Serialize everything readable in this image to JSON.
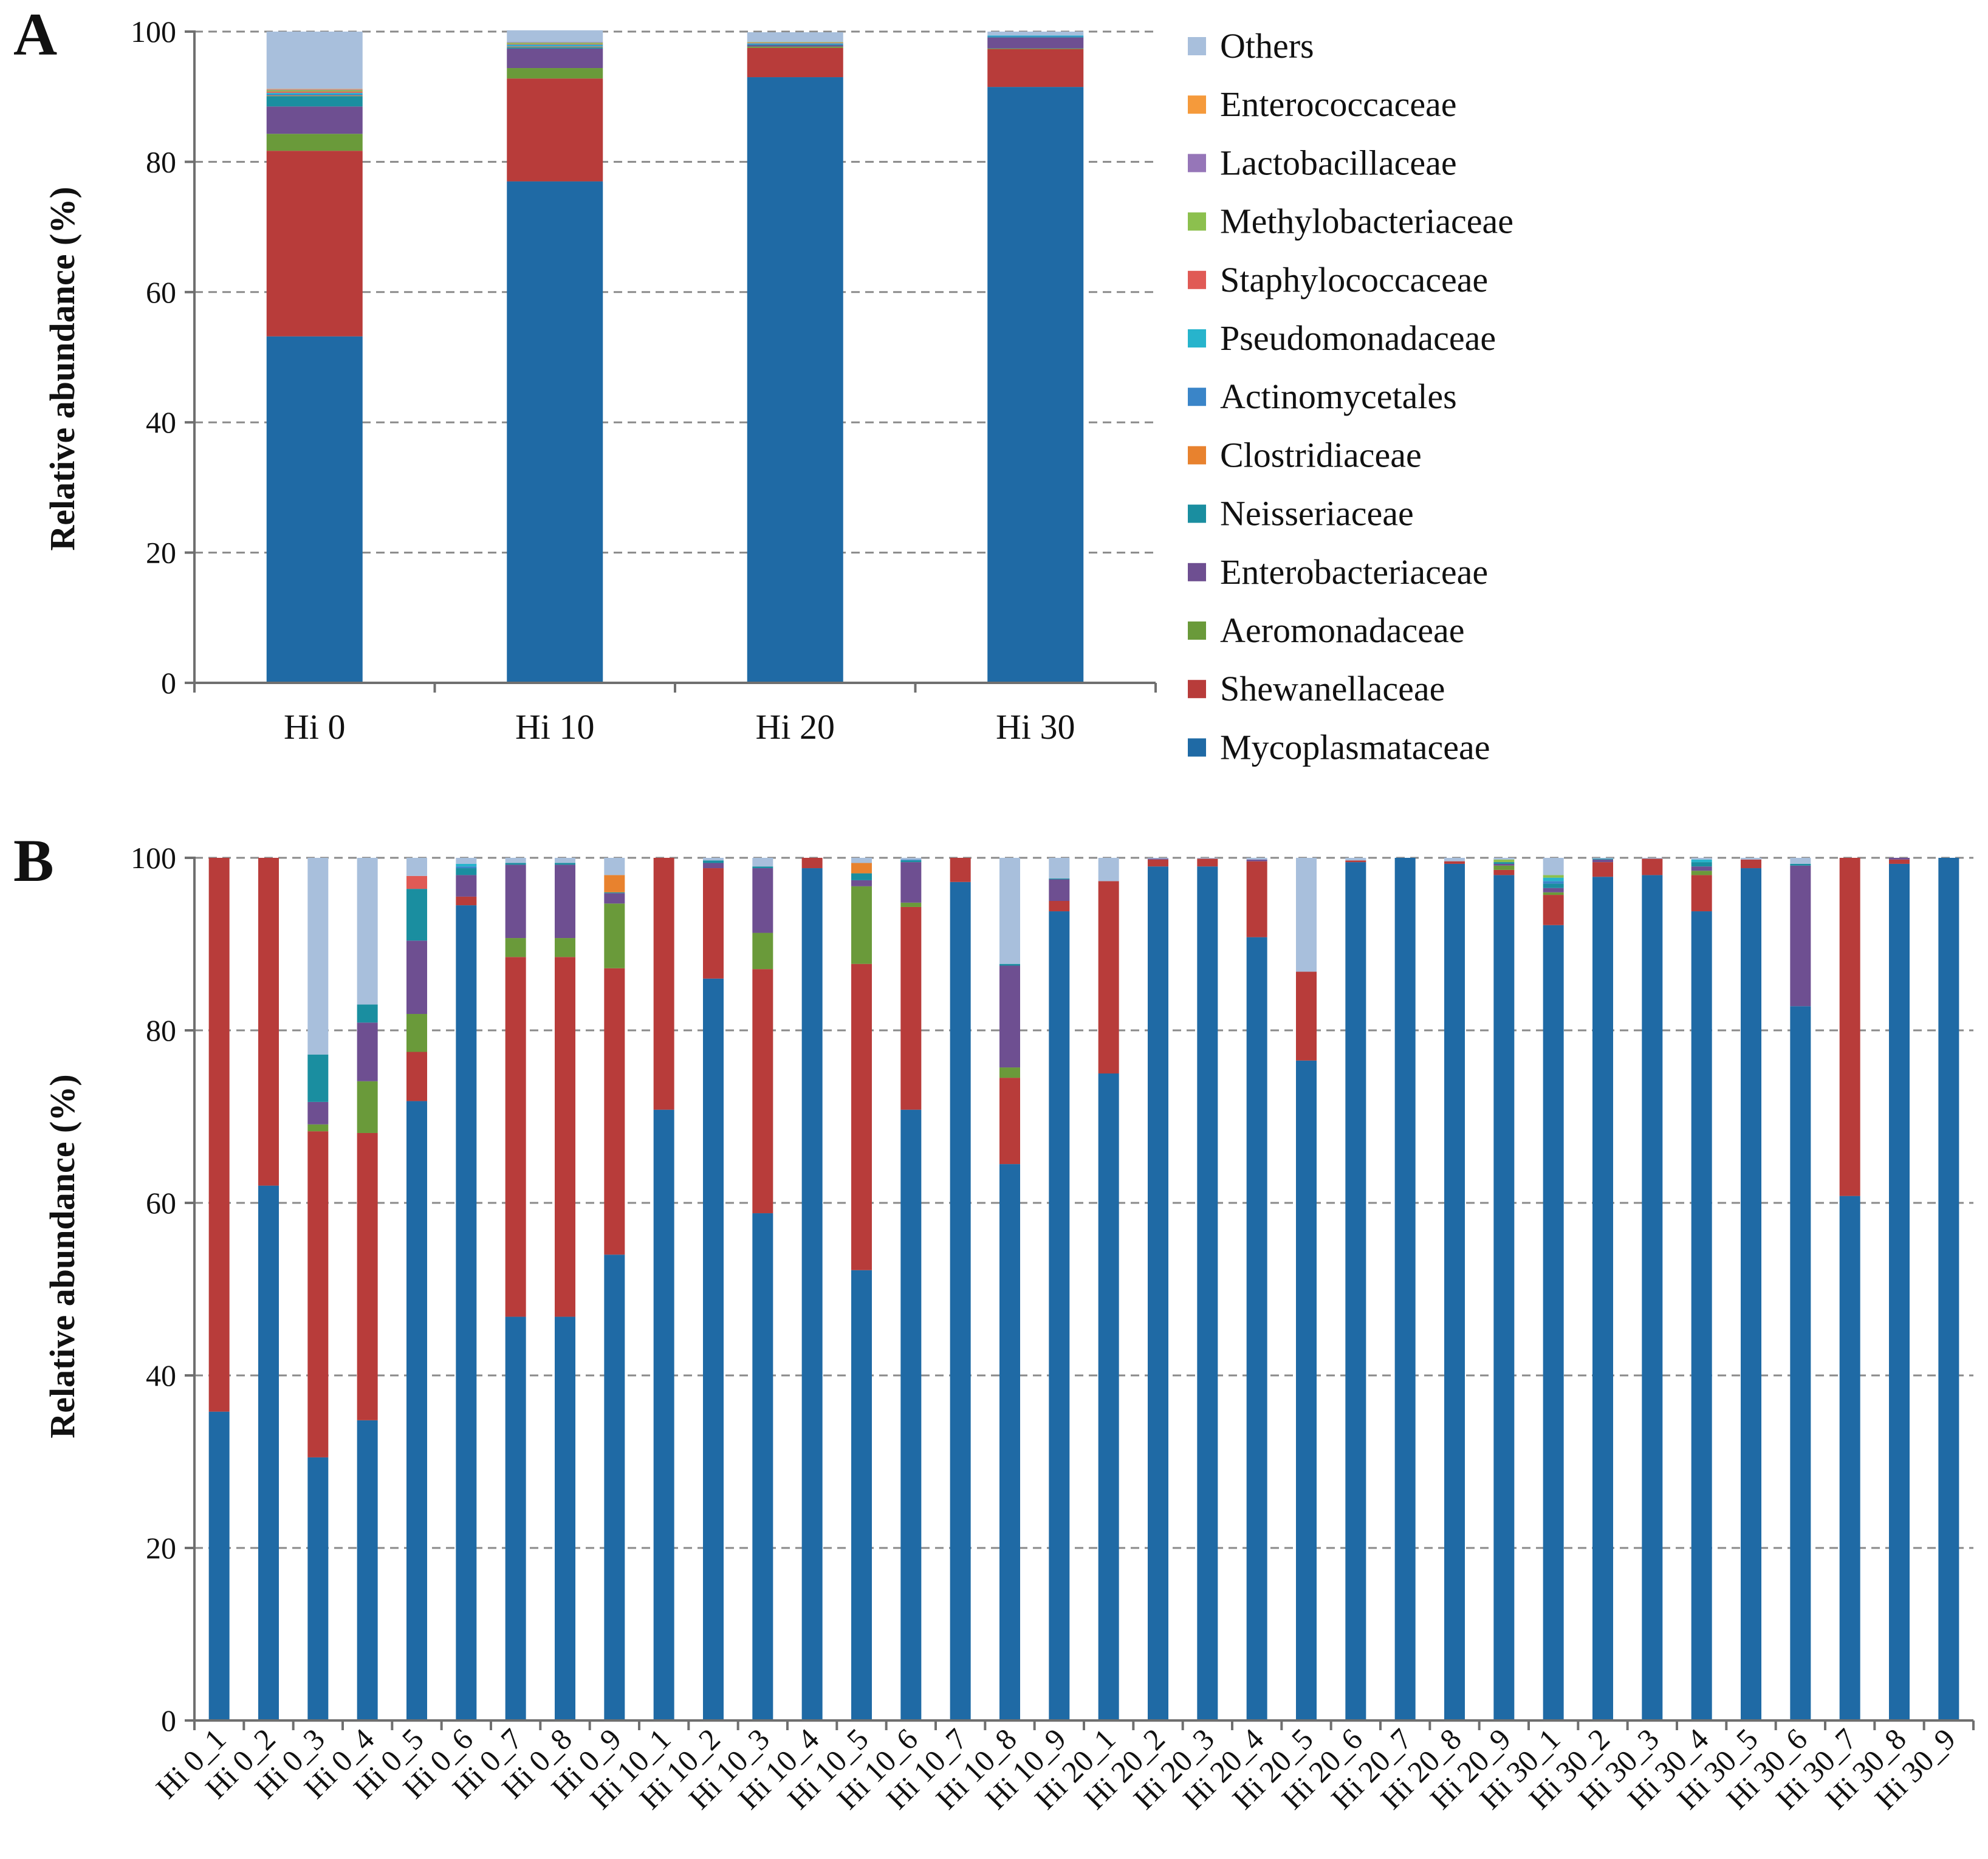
{
  "families": [
    {
      "name": "Mycoplasmataceae",
      "color": "#1f6aa5"
    },
    {
      "name": "Shewanellaceae",
      "color": "#b83c3a"
    },
    {
      "name": "Aeromonadaceae",
      "color": "#6a9a3a"
    },
    {
      "name": "Enterobacteriaceae",
      "color": "#6e4f91"
    },
    {
      "name": "Neisseriaceae",
      "color": "#1a8ea0"
    },
    {
      "name": "Clostridiaceae",
      "color": "#e8822e"
    },
    {
      "name": "Actinomycetales",
      "color": "#3a85c8"
    },
    {
      "name": "Pseudomonadaceae",
      "color": "#27b4cc"
    },
    {
      "name": "Staphylococcaceae",
      "color": "#e05a55"
    },
    {
      "name": "Methylobacteriaceae",
      "color": "#8cc04e"
    },
    {
      "name": "Lactobacillaceae",
      "color": "#9676b8"
    },
    {
      "name": "Enterococcaceae",
      "color": "#f59a3b"
    },
    {
      "name": "Others",
      "color": "#a8bfdc"
    }
  ],
  "chart_data": [
    {
      "panel": "A",
      "type": "bar",
      "stacked": true,
      "title": "",
      "xlabel": "",
      "ylabel": "Relative abundance (%)",
      "ylim": [
        0,
        100
      ],
      "yticks": [
        0,
        20,
        40,
        60,
        80,
        100
      ],
      "grid": true,
      "legend": "right",
      "categories": [
        "Hi 0",
        "Hi 10",
        "Hi 20",
        "Hi 30"
      ],
      "series": [
        {
          "name": "Mycoplasmataceae",
          "values": [
            53.2,
            77.0,
            93.0,
            91.5
          ]
        },
        {
          "name": "Shewanellaceae",
          "values": [
            28.5,
            15.8,
            4.5,
            5.8
          ]
        },
        {
          "name": "Aeromonadaceae",
          "values": [
            2.6,
            1.6,
            0.2,
            0.1
          ]
        },
        {
          "name": "Enterobacteriaceae",
          "values": [
            4.2,
            3.0,
            0.2,
            1.7
          ]
        },
        {
          "name": "Neisseriaceae",
          "values": [
            1.6,
            0.2,
            0.1,
            0.1
          ]
        },
        {
          "name": "Clostridiaceae",
          "values": [
            0.1,
            0.1,
            0.0,
            0.0
          ]
        },
        {
          "name": "Actinomycetales",
          "values": [
            0.2,
            0.1,
            0.1,
            0.1
          ]
        },
        {
          "name": "Pseudomonadaceae",
          "values": [
            0.2,
            0.2,
            0.1,
            0.1
          ]
        },
        {
          "name": "Staphylococcaceae",
          "values": [
            0.2,
            0.1,
            0.1,
            0.0
          ]
        },
        {
          "name": "Methylobacteriaceae",
          "values": [
            0.2,
            0.2,
            0.1,
            0.0
          ]
        },
        {
          "name": "Lactobacillaceae",
          "values": [
            0.1,
            0.1,
            0.0,
            0.0
          ]
        },
        {
          "name": "Enterococcaceae",
          "values": [
            0.1,
            0.0,
            0.0,
            0.0
          ]
        },
        {
          "name": "Others",
          "values": [
            8.8,
            1.8,
            1.5,
            0.6
          ]
        }
      ]
    },
    {
      "panel": "B",
      "type": "bar",
      "stacked": true,
      "title": "",
      "xlabel": "",
      "ylabel": "Relative abundance (%)",
      "ylim": [
        0,
        100
      ],
      "yticks": [
        0,
        20,
        40,
        60,
        80,
        100
      ],
      "grid": true,
      "categories": [
        "Hi 0_1",
        "Hi 0_2",
        "Hi 0_3",
        "Hi 0_4",
        "Hi 0_5",
        "Hi 0_6",
        "Hi 0_7",
        "Hi 0_8",
        "Hi 0_9",
        "Hi 10_1",
        "Hi 10_2",
        "Hi 10_3",
        "Hi 10_4",
        "Hi 10_5",
        "Hi 10_6",
        "Hi 10_7",
        "Hi 10_8",
        "Hi 10_9",
        "Hi 20_1",
        "Hi 20_2",
        "Hi 20_3",
        "Hi 20_4",
        "Hi 20_5",
        "Hi 20_6",
        "Hi 20_7",
        "Hi 20_8",
        "Hi 20_9",
        "Hi 30_1",
        "Hi 30_2",
        "Hi 30_3",
        "Hi 30_4",
        "Hi 30_5",
        "Hi 30_6",
        "Hi 30_7",
        "Hi 30_8",
        "Hi 30_9"
      ],
      "series": [
        {
          "name": "Mycoplasmataceae",
          "values": [
            35.8,
            62.0,
            30.5,
            34.8,
            71.8,
            94.5,
            46.8,
            46.8,
            54.0,
            70.8,
            86.0,
            58.8,
            98.8,
            52.2,
            70.8,
            97.2,
            64.5,
            93.8,
            75.0,
            99.0,
            99.0,
            90.8,
            76.5,
            99.5,
            100.0,
            99.3,
            98.0,
            92.2,
            97.8,
            98.0,
            93.8,
            98.8,
            82.8,
            60.8,
            99.3,
            100.0
          ]
        },
        {
          "name": "Shewanellaceae",
          "values": [
            64.2,
            38.0,
            37.8,
            33.3,
            5.7,
            1.0,
            41.7,
            41.7,
            33.2,
            29.2,
            12.8,
            28.3,
            1.2,
            35.5,
            23.5,
            2.8,
            10.0,
            1.2,
            22.3,
            0.8,
            0.9,
            8.8,
            10.3,
            0.2,
            0.0,
            0.3,
            0.6,
            3.5,
            1.7,
            1.9,
            4.2,
            1.0,
            0.0,
            39.2,
            0.5,
            0.0
          ]
        },
        {
          "name": "Aeromonadaceae",
          "values": [
            0.0,
            0.0,
            0.8,
            6.0,
            4.4,
            0.0,
            2.2,
            2.2,
            7.5,
            0.0,
            0.0,
            4.2,
            0.0,
            9.0,
            0.5,
            0.0,
            1.2,
            0.0,
            0.0,
            0.0,
            0.0,
            0.0,
            0.0,
            0.0,
            0.0,
            0.0,
            0.5,
            0.3,
            0.0,
            0.0,
            0.5,
            0.0,
            0.0,
            0.0,
            0.0,
            0.0
          ]
        },
        {
          "name": "Enterobacteriaceae",
          "values": [
            0.0,
            0.0,
            2.6,
            6.8,
            8.5,
            2.5,
            8.5,
            8.5,
            1.2,
            0.0,
            0.6,
            7.5,
            0.0,
            0.7,
            4.7,
            0.0,
            11.8,
            2.5,
            0.0,
            0.1,
            0.0,
            0.2,
            0.0,
            0.0,
            0.0,
            0.0,
            0.2,
            0.5,
            0.3,
            0.0,
            0.5,
            0.0,
            16.3,
            0.0,
            0.2,
            0.0
          ]
        },
        {
          "name": "Neisseriaceae",
          "values": [
            0.0,
            0.0,
            5.5,
            2.1,
            6.0,
            0.8,
            0.2,
            0.2,
            0.1,
            0.0,
            0.3,
            0.2,
            0.0,
            0.8,
            0.2,
            0.0,
            0.2,
            0.1,
            0.0,
            0.0,
            0.0,
            0.0,
            0.0,
            0.0,
            0.0,
            0.0,
            0.2,
            0.5,
            0.1,
            0.0,
            0.5,
            0.0,
            0.2,
            0.0,
            0.0,
            0.0
          ]
        },
        {
          "name": "Clostridiaceae",
          "values": [
            0.0,
            0.0,
            0.0,
            0.0,
            0.0,
            0.0,
            0.0,
            0.0,
            2.0,
            0.0,
            0.0,
            0.0,
            0.0,
            1.2,
            0.0,
            0.0,
            0.0,
            0.0,
            0.0,
            0.0,
            0.0,
            0.0,
            0.0,
            0.0,
            0.0,
            0.0,
            0.0,
            0.0,
            0.0,
            0.0,
            0.0,
            0.0,
            0.0,
            0.0,
            0.0,
            0.0
          ]
        },
        {
          "name": "Actinomycetales",
          "values": [
            0.0,
            0.0,
            0.0,
            0.0,
            0.0,
            0.2,
            0.0,
            0.0,
            0.0,
            0.0,
            0.0,
            0.0,
            0.0,
            0.0,
            0.1,
            0.0,
            0.0,
            0.0,
            0.0,
            0.0,
            0.0,
            0.0,
            0.0,
            0.0,
            0.0,
            0.0,
            0.0,
            0.3,
            0.0,
            0.0,
            0.0,
            0.0,
            0.0,
            0.0,
            0.0,
            0.0
          ]
        },
        {
          "name": "Pseudomonadaceae",
          "values": [
            0.0,
            0.0,
            0.0,
            0.0,
            0.0,
            0.3,
            0.0,
            0.0,
            0.0,
            0.0,
            0.0,
            0.0,
            0.0,
            0.0,
            0.0,
            0.0,
            0.0,
            0.0,
            0.0,
            0.0,
            0.0,
            0.0,
            0.0,
            0.0,
            0.0,
            0.0,
            0.0,
            0.4,
            0.0,
            0.0,
            0.3,
            0.0,
            0.0,
            0.0,
            0.0,
            0.0
          ]
        },
        {
          "name": "Staphylococcaceae",
          "values": [
            0.0,
            0.0,
            0.0,
            0.0,
            1.5,
            0.0,
            0.0,
            0.0,
            0.0,
            0.0,
            0.0,
            0.0,
            0.0,
            0.0,
            0.0,
            0.0,
            0.0,
            0.0,
            0.0,
            0.0,
            0.0,
            0.0,
            0.0,
            0.0,
            0.0,
            0.0,
            0.0,
            0.0,
            0.0,
            0.0,
            0.0,
            0.0,
            0.0,
            0.0,
            0.0,
            0.0
          ]
        },
        {
          "name": "Methylobacteriaceae",
          "values": [
            0.0,
            0.0,
            0.0,
            0.0,
            0.0,
            0.0,
            0.0,
            0.0,
            0.0,
            0.0,
            0.0,
            0.0,
            0.0,
            0.0,
            0.0,
            0.0,
            0.0,
            0.0,
            0.0,
            0.0,
            0.0,
            0.0,
            0.0,
            0.0,
            0.0,
            0.0,
            0.3,
            0.3,
            0.0,
            0.0,
            0.0,
            0.0,
            0.0,
            0.0,
            0.0,
            0.0
          ]
        },
        {
          "name": "Lactobacillaceae",
          "values": [
            0.0,
            0.0,
            0.0,
            0.0,
            0.0,
            0.0,
            0.0,
            0.0,
            0.0,
            0.0,
            0.0,
            0.0,
            0.0,
            0.0,
            0.0,
            0.0,
            0.0,
            0.0,
            0.0,
            0.0,
            0.0,
            0.0,
            0.0,
            0.0,
            0.0,
            0.0,
            0.0,
            0.0,
            0.0,
            0.0,
            0.0,
            0.0,
            0.0,
            0.0,
            0.0,
            0.0
          ]
        },
        {
          "name": "Enterococcaceae",
          "values": [
            0.0,
            0.0,
            0.0,
            0.0,
            0.0,
            0.0,
            0.0,
            0.0,
            0.0,
            0.0,
            0.0,
            0.0,
            0.0,
            0.0,
            0.0,
            0.0,
            0.0,
            0.0,
            0.0,
            0.0,
            0.0,
            0.0,
            0.0,
            0.0,
            0.0,
            0.0,
            0.0,
            0.0,
            0.0,
            0.0,
            0.0,
            0.0,
            0.0,
            0.0,
            0.0,
            0.0
          ]
        },
        {
          "name": "Others",
          "values": [
            0.0,
            0.0,
            22.8,
            17.0,
            2.1,
            0.7,
            0.6,
            0.6,
            2.0,
            0.0,
            0.3,
            1.0,
            0.0,
            0.6,
            0.2,
            0.0,
            12.3,
            2.4,
            2.7,
            0.1,
            0.1,
            0.2,
            13.2,
            0.3,
            0.0,
            0.4,
            0.2,
            2.0,
            0.1,
            0.1,
            0.2,
            0.2,
            0.7,
            0.0,
            0.0,
            0.0
          ]
        }
      ]
    }
  ]
}
